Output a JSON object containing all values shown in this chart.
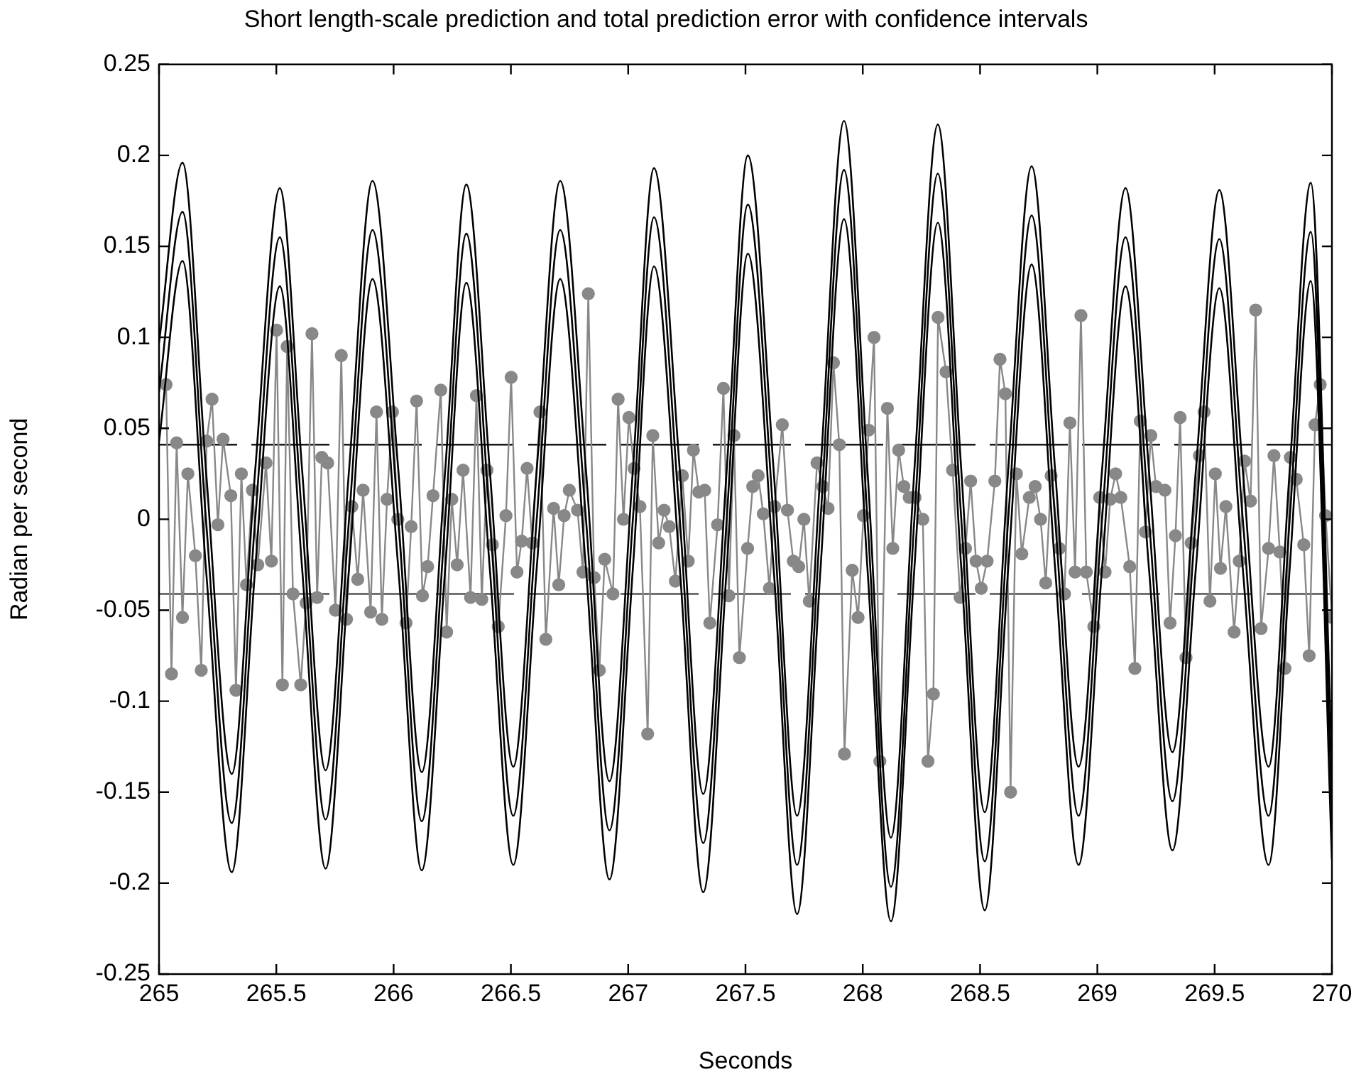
{
  "chart_data": {
    "type": "line",
    "title": "Short length-scale prediction and total prediction error with confidence intervals",
    "xlabel": "Seconds",
    "ylabel": "Radian per second",
    "xlim": [
      265,
      270
    ],
    "xticks": [
      265,
      265.5,
      266,
      266.5,
      267,
      267.5,
      268,
      268.5,
      269,
      269.5,
      270
    ],
    "ylim": [
      -0.25,
      0.25
    ],
    "yticks": [
      -0.25,
      -0.2,
      -0.15,
      -0.1,
      -0.05,
      0,
      0.05,
      0.1,
      0.15,
      0.2,
      0.25
    ],
    "grid": false,
    "legend": false,
    "marker": "none",
    "line_style": "solid",
    "x": [
      265,
      265.1,
      265.2,
      265.31,
      265.41,
      265.515,
      265.61,
      265.71,
      265.81,
      265.91,
      266.02,
      266.12,
      266.22,
      266.31,
      266.41,
      266.51,
      266.61,
      266.71,
      266.82,
      266.92,
      267.02,
      267.11,
      267.22,
      267.32,
      267.42,
      267.51,
      267.62,
      267.72,
      267.82,
      267.92,
      268.02,
      268.12,
      268.22,
      268.32,
      268.42,
      268.52,
      268.62,
      268.72,
      268.82,
      268.92,
      269.02,
      269.12,
      269.22,
      269.32,
      269.42,
      269.52,
      269.62,
      269.73,
      269.82,
      269.91,
      270
    ],
    "ref_lines": [
      {
        "axis": "y",
        "value": 0.041,
        "color": "#000000",
        "line_style": "dashed"
      },
      {
        "axis": "y",
        "value": -0.041,
        "color": "#555555",
        "line_style": "dashed"
      }
    ],
    "series": [
      {
        "color": "#000000",
        "values": [
          0.097,
          0.196,
          0.027,
          -0.14,
          0.027,
          0.182,
          0.027,
          -0.138,
          0.027,
          0.186,
          0.027,
          -0.139,
          0.027,
          0.184,
          0.027,
          -0.136,
          0.027,
          0.186,
          0.027,
          -0.144,
          0.027,
          0.193,
          0.027,
          -0.151,
          0.027,
          0.2,
          0.027,
          -0.163,
          0.027,
          0.219,
          0.027,
          -0.175,
          0.027,
          0.217,
          0.027,
          -0.161,
          0.027,
          0.194,
          0.027,
          -0.136,
          0.027,
          0.182,
          0.027,
          -0.128,
          0.027,
          0.181,
          0.027,
          -0.136,
          0.027,
          0.185,
          -0.133
        ]
      },
      {
        "color": "#000000",
        "values": [
          0.07,
          0.169,
          0,
          -0.167,
          0,
          0.155,
          0,
          -0.165,
          0,
          0.159,
          0,
          -0.166,
          0,
          0.157,
          0,
          -0.163,
          0,
          0.159,
          0,
          -0.171,
          0,
          0.166,
          0,
          -0.178,
          0,
          0.173,
          0,
          -0.19,
          0,
          0.192,
          0,
          -0.202,
          0,
          0.19,
          0,
          -0.188,
          0,
          0.167,
          0,
          -0.163,
          0,
          0.155,
          0,
          -0.155,
          0,
          0.154,
          0,
          -0.163,
          0,
          0.158,
          -0.16
        ]
      },
      {
        "color": "#000000",
        "values": [
          0.043,
          0.142,
          -0.027,
          -0.194,
          -0.027,
          0.128,
          -0.027,
          -0.192,
          -0.027,
          0.132,
          -0.027,
          -0.193,
          -0.027,
          0.13,
          -0.027,
          -0.19,
          -0.027,
          0.132,
          -0.027,
          -0.198,
          -0.027,
          0.139,
          -0.027,
          -0.205,
          -0.027,
          0.146,
          -0.027,
          -0.217,
          -0.027,
          0.165,
          -0.027,
          -0.221,
          -0.027,
          0.163,
          -0.027,
          -0.215,
          -0.027,
          0.14,
          -0.027,
          -0.19,
          -0.027,
          0.128,
          -0.027,
          -0.182,
          -0.027,
          0.127,
          -0.027,
          -0.19,
          -0.027,
          0.131,
          -0.187
        ]
      },
      {
        "color": "#888888",
        "marker": "circle",
        "x": [
          265.03,
          265.053,
          265.075,
          265.1,
          265.123,
          265.155,
          265.18,
          265.203,
          265.226,
          265.251,
          265.273,
          265.306,
          265.328,
          265.351,
          265.373,
          265.398,
          265.421,
          265.456,
          265.479,
          265.501,
          265.526,
          265.546,
          265.571,
          265.604,
          265.627,
          265.652,
          265.674,
          265.694,
          265.719,
          265.752,
          265.777,
          265.799,
          265.822,
          265.847,
          265.87,
          265.902,
          265.927,
          265.95,
          265.972,
          265.995,
          266.018,
          266.053,
          266.075,
          266.098,
          266.123,
          266.145,
          266.168,
          266.201,
          266.226,
          266.248,
          266.271,
          266.296,
          266.328,
          266.353,
          266.376,
          266.398,
          266.421,
          266.446,
          266.479,
          266.501,
          266.526,
          266.546,
          266.569,
          266.591,
          266.624,
          266.649,
          266.682,
          266.704,
          266.727,
          266.749,
          266.784,
          266.807,
          266.83,
          266.855,
          266.877,
          266.9,
          266.935,
          266.957,
          266.98,
          267.003,
          267.025,
          267.05,
          267.083,
          267.105,
          267.13,
          267.153,
          267.175,
          267.201,
          267.231,
          267.256,
          267.278,
          267.301,
          267.326,
          267.348,
          267.381,
          267.406,
          267.429,
          267.451,
          267.474,
          267.509,
          267.531,
          267.554,
          267.576,
          267.602,
          267.624,
          267.657,
          267.679,
          267.704,
          267.727,
          267.749,
          267.772,
          267.805,
          267.83,
          267.852,
          267.875,
          267.9,
          267.922,
          267.955,
          267.98,
          268.003,
          268.025,
          268.048,
          268.073,
          268.105,
          268.128,
          268.153,
          268.175,
          268.198,
          268.223,
          268.256,
          268.278,
          268.301,
          268.321,
          268.355,
          268.383,
          268.415,
          268.438,
          268.46,
          268.483,
          268.505,
          268.53,
          268.563,
          268.585,
          268.608,
          268.63,
          268.655,
          268.678,
          268.71,
          268.735,
          268.758,
          268.78,
          268.803,
          268.838,
          268.86,
          268.883,
          268.905,
          268.93,
          268.953,
          268.985,
          269.01,
          269.033,
          269.055,
          269.078,
          269.1,
          269.138,
          269.16,
          269.183,
          269.205,
          269.228,
          269.25,
          269.288,
          269.31,
          269.333,
          269.353,
          269.378,
          269.4,
          269.435,
          269.455,
          269.48,
          269.503,
          269.525,
          269.548,
          269.583,
          269.605,
          269.628,
          269.653,
          269.675,
          269.698,
          269.73,
          269.753,
          269.778,
          269.8,
          269.823,
          269.848,
          269.88,
          269.903,
          269.928,
          269.95,
          269.973,
          270
        ],
        "values": [
          0.074,
          -0.085,
          0.042,
          -0.054,
          0.025,
          -0.02,
          -0.083,
          0.043,
          0.066,
          -0.003,
          0.044,
          0.013,
          -0.094,
          0.025,
          -0.036,
          0.016,
          -0.025,
          0.031,
          -0.023,
          0.104,
          -0.091,
          0.095,
          -0.041,
          -0.091,
          -0.046,
          0.102,
          -0.043,
          0.034,
          0.031,
          -0.05,
          0.09,
          -0.055,
          0.007,
          -0.033,
          0.016,
          -0.051,
          0.059,
          -0.055,
          0.011,
          0.059,
          0,
          -0.057,
          -0.004,
          0.065,
          -0.042,
          -0.026,
          0.013,
          0.071,
          -0.062,
          0.011,
          -0.025,
          0.027,
          -0.043,
          0.068,
          -0.044,
          0.027,
          -0.014,
          -0.059,
          0.002,
          0.078,
          -0.029,
          -0.012,
          0.028,
          -0.013,
          0.059,
          -0.066,
          0.006,
          -0.036,
          0.002,
          0.016,
          0.005,
          -0.029,
          0.124,
          -0.032,
          -0.083,
          -0.022,
          -0.041,
          0.066,
          0,
          0.056,
          0.028,
          0.007,
          -0.118,
          0.046,
          -0.013,
          0.005,
          -0.004,
          -0.034,
          0.024,
          -0.023,
          0.038,
          0.015,
          0.016,
          -0.057,
          -0.003,
          0.072,
          -0.042,
          0.046,
          -0.076,
          -0.016,
          0.018,
          0.024,
          0.003,
          -0.038,
          0.007,
          0.052,
          0.005,
          -0.023,
          -0.026,
          0,
          -0.045,
          0.031,
          0.018,
          0.006,
          0.086,
          0.041,
          -0.129,
          -0.028,
          -0.054,
          0.002,
          0.049,
          0.1,
          -0.133,
          0.061,
          -0.016,
          0.038,
          0.018,
          0.012,
          0.012,
          0,
          -0.133,
          -0.096,
          0.111,
          0.081,
          0.027,
          -0.043,
          -0.016,
          0.021,
          -0.023,
          -0.038,
          -0.023,
          0.021,
          0.088,
          0.069,
          -0.15,
          0.025,
          -0.019,
          0.012,
          0.018,
          0,
          -0.035,
          0.024,
          -0.016,
          -0.041,
          0.053,
          -0.029,
          0.112,
          -0.029,
          -0.059,
          0.012,
          -0.029,
          0.011,
          0.025,
          0.012,
          -0.026,
          -0.082,
          0.054,
          -0.007,
          0.046,
          0.018,
          0.016,
          -0.057,
          -0.009,
          0.056,
          -0.076,
          -0.013,
          0.035,
          0.059,
          -0.045,
          0.025,
          -0.027,
          0.007,
          -0.062,
          -0.023,
          0.032,
          0.01,
          0.115,
          -0.06,
          -0.016,
          0.035,
          -0.018,
          -0.082,
          0.034,
          0.022,
          -0.014,
          -0.075,
          0.052,
          0.074,
          0.002,
          -0.054
        ]
      }
    ]
  }
}
